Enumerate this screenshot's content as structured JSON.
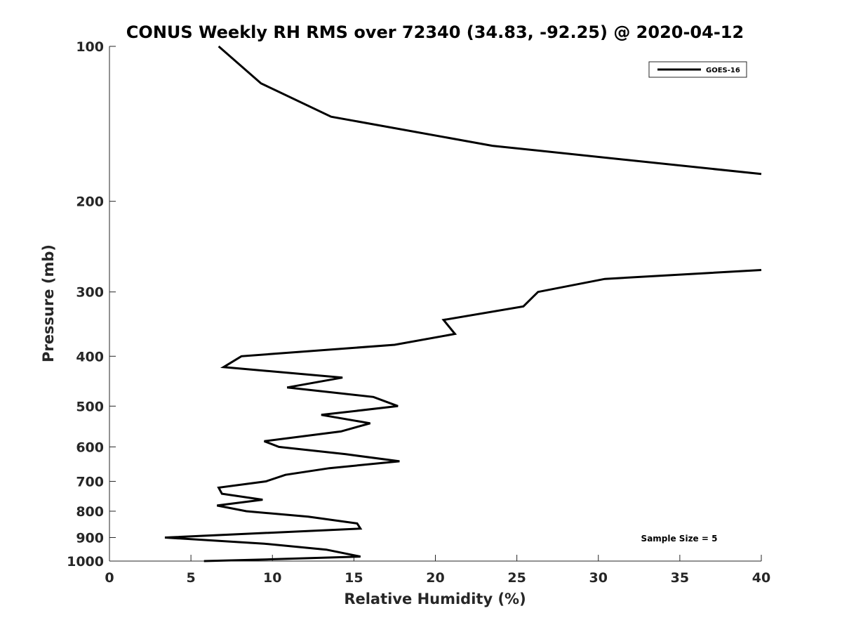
{
  "chart_data": {
    "type": "line",
    "title": "CONUS Weekly RH RMS over 72340 (34.83, -92.25) @ 2020-04-12",
    "xlabel": "Relative Humidity (%)",
    "ylabel": "Pressure (mb)",
    "xlim": [
      0,
      40
    ],
    "ylim": [
      100,
      1000
    ],
    "y_scale": "log",
    "y_reversed": true,
    "x_ticks": [
      0,
      5,
      10,
      15,
      20,
      25,
      30,
      35,
      40
    ],
    "y_ticks": [
      100,
      200,
      300,
      400,
      500,
      600,
      700,
      800,
      900,
      1000
    ],
    "grid": false,
    "legend_position": "top-right",
    "annotation": "Sample Size = 5",
    "line_color": "#000000",
    "series": [
      {
        "name": "GOES-16",
        "segments": [
          {
            "x": [
              6.7,
              9.3,
              13.6,
              23.5,
              40
            ],
            "y": [
              100,
              118,
              137,
              156,
              177
            ]
          },
          {
            "x": [
              40,
              30.4,
              26.3,
              25.4,
              20.5,
              21.2,
              17.5,
              8.1,
              7.0,
              14.3,
              10.9,
              16.2,
              17.7,
              13.0,
              16.0,
              14.2,
              9.5,
              10.4,
              14.5,
              17.8,
              13.5,
              10.8,
              9.6,
              6.7,
              6.9,
              9.4,
              6.6,
              8.4,
              12.2,
              15.2,
              15.4,
              3.4,
              9.5,
              13.3,
              15.4,
              10.0,
              5.8
            ],
            "y": [
              272,
              283,
              300,
              320,
              340,
              362,
              380,
              400,
              420,
              440,
              460,
              480,
              500,
              520,
              540,
              560,
              585,
              600,
              620,
              640,
              660,
              680,
              700,
              720,
              740,
              760,
              780,
              800,
              820,
              845,
              865,
              900,
              925,
              950,
              980,
              992,
              1000
            ]
          }
        ]
      }
    ]
  }
}
